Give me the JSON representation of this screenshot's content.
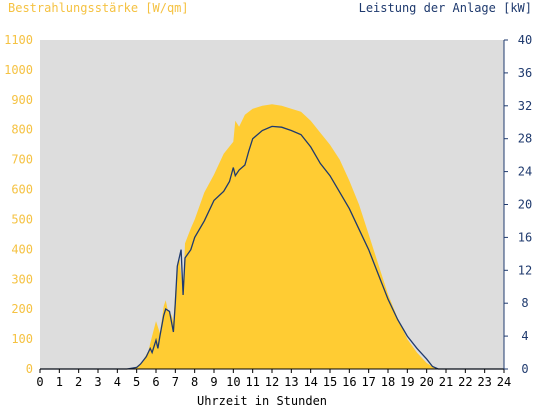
{
  "chart_data": {
    "type": "area",
    "left_axis_title": "Bestrahlungsstärke [W/qm]",
    "right_axis_title": "Leistung der Anlage [kW]",
    "xlabel": "Uhrzeit in Stunden",
    "xlim": [
      0,
      24
    ],
    "y_left_lim": [
      0,
      1100
    ],
    "y_right_lim": [
      0,
      40
    ],
    "x_ticks": [
      "0",
      "1",
      "2",
      "3",
      "4",
      "5",
      "6",
      "7",
      "8",
      "9",
      "10",
      "11",
      "12",
      "13",
      "14",
      "15",
      "16",
      "17",
      "18",
      "19",
      "20",
      "21",
      "22",
      "23",
      "24"
    ],
    "y_left_ticks": [
      "0",
      "100",
      "200",
      "300",
      "400",
      "500",
      "600",
      "700",
      "800",
      "900",
      "1000",
      "1100"
    ],
    "y_right_ticks": [
      "0",
      "4",
      "8",
      "12",
      "16",
      "20",
      "24",
      "28",
      "32",
      "36",
      "40"
    ],
    "grid": false,
    "colors": {
      "irradiance": "#ffcc33",
      "power": "#1f3a6e",
      "plot_bg": "#dddddd",
      "left_axis_text": "#f5c242",
      "right_axis_text": "#1f3a6e"
    },
    "series": [
      {
        "name": "Bestrahlungsstärke [W/qm]",
        "axis": "left",
        "x": [
          0,
          4.5,
          5,
          5.3,
          5.6,
          5.8,
          6.0,
          6.2,
          6.4,
          6.5,
          6.6,
          6.8,
          6.9,
          7.0,
          7.2,
          7.4,
          7.5,
          7.8,
          8.0,
          8.5,
          9.0,
          9.5,
          10.0,
          10.1,
          10.3,
          10.6,
          11.0,
          11.5,
          12.0,
          12.5,
          13.0,
          13.5,
          14.0,
          14.5,
          15.0,
          15.5,
          16.0,
          16.5,
          17.0,
          17.5,
          18.0,
          18.5,
          19.0,
          19.5,
          20.0,
          20.3,
          20.6,
          21.0,
          24
        ],
        "y": [
          0,
          0,
          8,
          25,
          60,
          110,
          160,
          120,
          210,
          230,
          200,
          180,
          160,
          260,
          380,
          250,
          420,
          470,
          500,
          590,
          650,
          720,
          760,
          830,
          810,
          850,
          870,
          880,
          885,
          880,
          870,
          860,
          830,
          790,
          750,
          700,
          630,
          550,
          450,
          350,
          250,
          170,
          100,
          55,
          20,
          8,
          0,
          0,
          0
        ]
      },
      {
        "name": "Leistung der Anlage [kW]",
        "axis": "right",
        "x": [
          0,
          4.5,
          5,
          5.2,
          5.5,
          5.7,
          5.8,
          6.0,
          6.1,
          6.2,
          6.4,
          6.5,
          6.7,
          6.9,
          7.0,
          7.1,
          7.3,
          7.4,
          7.5,
          7.8,
          8.0,
          8.5,
          9.0,
          9.5,
          9.8,
          10.0,
          10.1,
          10.3,
          10.6,
          10.8,
          11.0,
          11.5,
          12.0,
          12.5,
          13.0,
          13.5,
          14.0,
          14.5,
          15.0,
          15.5,
          16.0,
          16.5,
          17.0,
          17.5,
          18.0,
          18.5,
          19.0,
          19.5,
          20.0,
          20.3,
          20.6,
          21.0,
          24
        ],
        "y": [
          0,
          0,
          0.2,
          0.6,
          1.5,
          2.5,
          2.0,
          3.5,
          2.5,
          4.0,
          6.5,
          7.3,
          7.0,
          4.5,
          8.0,
          12.5,
          14.5,
          9.0,
          13.5,
          14.5,
          16.0,
          18.0,
          20.5,
          21.6,
          22.8,
          24.5,
          23.5,
          24.2,
          24.8,
          26.5,
          28.0,
          29.0,
          29.5,
          29.4,
          29.0,
          28.5,
          27.0,
          25.0,
          23.5,
          21.5,
          19.5,
          17.0,
          14.5,
          11.5,
          8.5,
          6.0,
          4.0,
          2.5,
          1.2,
          0.3,
          0,
          0,
          0
        ]
      }
    ]
  }
}
